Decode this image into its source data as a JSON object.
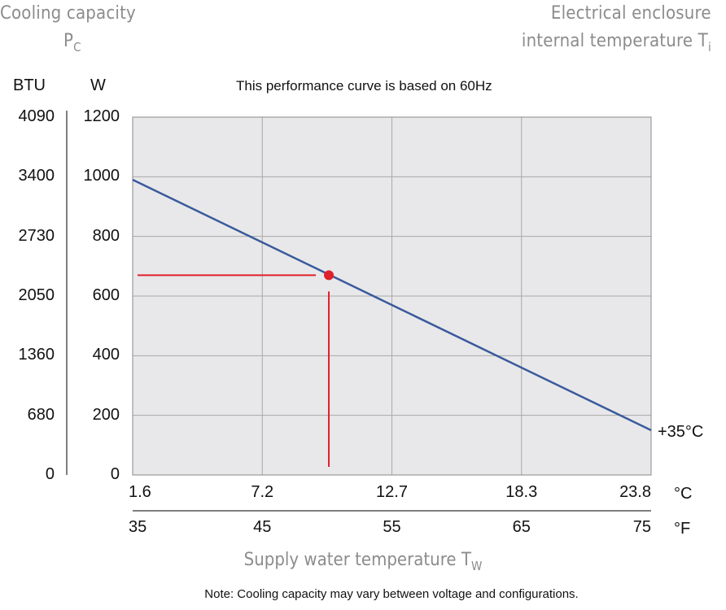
{
  "header": {
    "left_title": "Cooling capacity",
    "left_symbol": "P",
    "left_symbol_sub": "C",
    "right_title_line1": "Electrical enclosure",
    "right_title_line2": "internal temperature T",
    "right_title_sub": "i"
  },
  "subtitle": "This performance curve is based on 60Hz",
  "units": {
    "btu": "BTU",
    "w": "W",
    "celsius": "°C",
    "fahrenheit": "°F"
  },
  "x_axis_title": "Supply water temperature T",
  "x_axis_title_sub": "W",
  "note": "Note: Cooling capacity may vary between voltage and configurations.",
  "colors": {
    "line": "#3a5a9c",
    "marker": "#e0202a",
    "plot_bg": "#e8e8ea",
    "grid": "#a8a8a8"
  },
  "chart_data": {
    "type": "line",
    "xlabel": "Supply water temperature T",
    "ylabel": "W",
    "grid": true,
    "x_range_celsius": [
      1.6,
      23.8
    ],
    "ylim": [
      0,
      1200
    ],
    "x_ticks_celsius": [
      "1.6",
      "7.2",
      "12.7",
      "18.3",
      "23.8"
    ],
    "x_ticks_fahrenheit": [
      "35",
      "45",
      "55",
      "65",
      "75"
    ],
    "y_ticks_w": [
      "0",
      "200",
      "400",
      "600",
      "800",
      "1000",
      "1200"
    ],
    "y_ticks_btu": [
      "0",
      "680",
      "1360",
      "2050",
      "2730",
      "3400",
      "4090"
    ],
    "series": [
      {
        "name": "+35°C",
        "x": [
          1.6,
          23.8
        ],
        "y": [
          990,
          150
        ]
      }
    ],
    "marker_point": {
      "x": 10.0,
      "y": 670
    }
  }
}
